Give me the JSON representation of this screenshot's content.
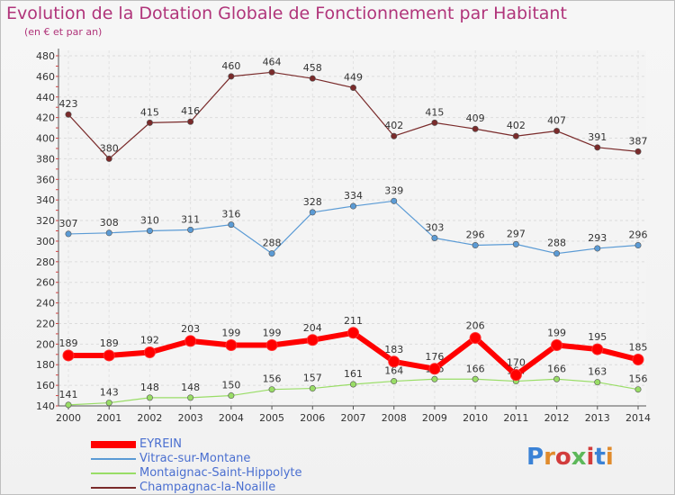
{
  "header": {
    "title": "Evolution de la Dotation Globale de Fonctionnement par Habitant",
    "subtitle": "(en € et par an)"
  },
  "logo": {
    "text": "Proxiti",
    "colors": [
      "#3a82d6",
      "#e08b2c",
      "#d23c3c",
      "#5db85a",
      "#d23c3c",
      "#3a82d6",
      "#e08b2c"
    ]
  },
  "chart_data": {
    "type": "line",
    "x": [
      "2000",
      "2001",
      "2002",
      "2003",
      "2004",
      "2005",
      "2006",
      "2007",
      "2008",
      "2009",
      "2010",
      "2011",
      "2012",
      "2013",
      "2014"
    ],
    "ylim": [
      140,
      480
    ],
    "yticks": [
      140,
      160,
      180,
      200,
      220,
      240,
      260,
      280,
      300,
      320,
      340,
      360,
      380,
      400,
      420,
      440,
      460,
      480
    ],
    "grid": true,
    "legend_position": "bottom-left",
    "series": [
      {
        "name": "EYREIN",
        "color": "#ff0000",
        "values": [
          189,
          189,
          192,
          203,
          199,
          199,
          204,
          211,
          183,
          176,
          206,
          170,
          199,
          195,
          185
        ]
      },
      {
        "name": "Vitrac-sur-Montane",
        "color": "#5b9bd5",
        "values": [
          307,
          308,
          310,
          311,
          316,
          288,
          328,
          334,
          339,
          303,
          296,
          297,
          288,
          293,
          296
        ]
      },
      {
        "name": "Montaignac-Saint-Hippolyte",
        "color": "#99dd66",
        "values": [
          141,
          143,
          148,
          148,
          150,
          156,
          157,
          161,
          164,
          166,
          166,
          164,
          166,
          163,
          156
        ]
      },
      {
        "name": "Champagnac-la-Noaille",
        "color": "#7a2b2b",
        "values": [
          423,
          380,
          415,
          416,
          460,
          464,
          458,
          449,
          402,
          415,
          409,
          402,
          407,
          391,
          387
        ]
      }
    ]
  }
}
